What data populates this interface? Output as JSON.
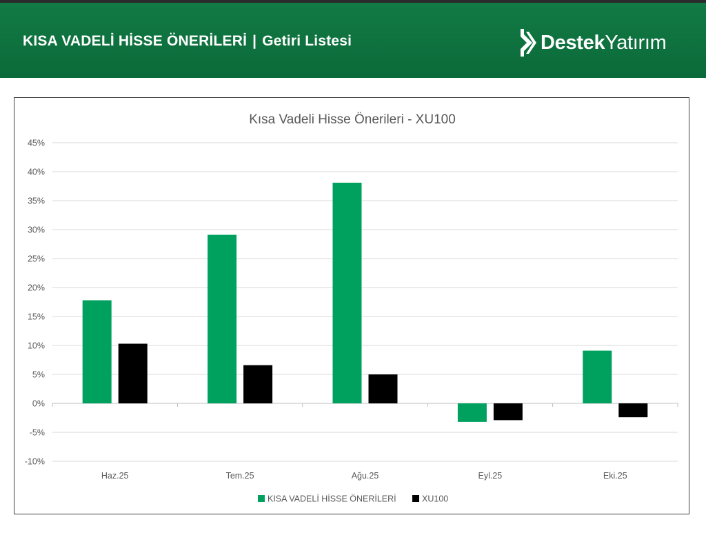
{
  "header": {
    "title_main": "KISA VADELİ HİSSE ÖNERİLERİ",
    "separator": "|",
    "title_sub": "Getiri Listesi",
    "logo_bold": "Destek",
    "logo_light": "Yatırım",
    "logo_icon": "destek-chevron-logo-icon"
  },
  "colors": {
    "header_green": "#0b6a39",
    "series_green": "#00a15f",
    "series_black": "#000000"
  },
  "chart_data": {
    "type": "bar",
    "title": "Kısa Vadeli Hisse Önerileri - XU100",
    "categories": [
      "Haz.25",
      "Tem.25",
      "Ağu.25",
      "Eyl.25",
      "Eki.25"
    ],
    "series": [
      {
        "name": "KISA VADELİ HİSSE ÖNERİLERİ",
        "color": "#00a15f",
        "values": [
          17.8,
          29.1,
          38.1,
          -3.2,
          9.1
        ]
      },
      {
        "name": "XU100",
        "color": "#000000",
        "values": [
          10.3,
          6.6,
          5.0,
          -2.9,
          -2.4
        ]
      }
    ],
    "y_ticks": [
      "45%",
      "40%",
      "35%",
      "30%",
      "25%",
      "20%",
      "15%",
      "10%",
      "5%",
      "0%",
      "-5%",
      "-10%"
    ],
    "ylim": [
      -10,
      45
    ],
    "y_step": 5,
    "y_unit": "%",
    "grid": true,
    "legend_position": "bottom"
  }
}
